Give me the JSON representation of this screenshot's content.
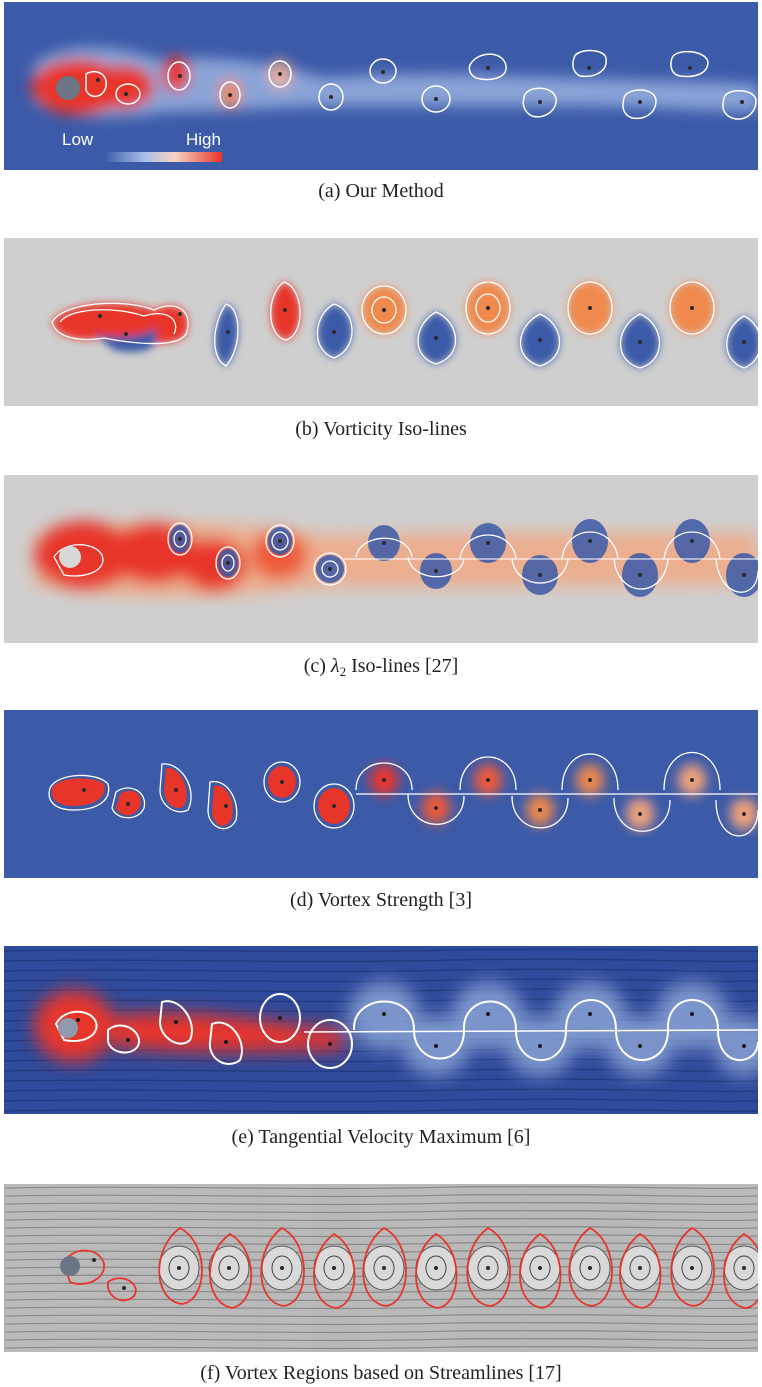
{
  "legend": {
    "low": "Low",
    "high": "High"
  },
  "panels": [
    {
      "id": "a",
      "label": "(a)",
      "text": "Our Method",
      "background": "#3b5aa8"
    },
    {
      "id": "b",
      "label": "(b)",
      "text": "Vorticity Iso-lines",
      "background": "#cfcfcf"
    },
    {
      "id": "c",
      "label": "(c)",
      "symbol": "λ",
      "subscript": "2",
      "text": "Iso-lines [27]",
      "background": "#cfcfcf"
    },
    {
      "id": "d",
      "label": "(d)",
      "text": "Vortex Strength [3]",
      "background": "#3b5aa8"
    },
    {
      "id": "e",
      "label": "(e)",
      "text": "Tangential Velocity Maximum [6]",
      "background": "#2e4a9a"
    },
    {
      "id": "f",
      "label": "(f)",
      "text": "Vortex Regions based on Streamlines [17]",
      "background": "#b9b9b9"
    }
  ],
  "colors": {
    "red": "#e8352a",
    "orange": "#f0894d",
    "blue": "#3b5aa8",
    "lightblue": "#9fb7e3",
    "white": "#ffffff",
    "gray": "#cfcfcf"
  }
}
